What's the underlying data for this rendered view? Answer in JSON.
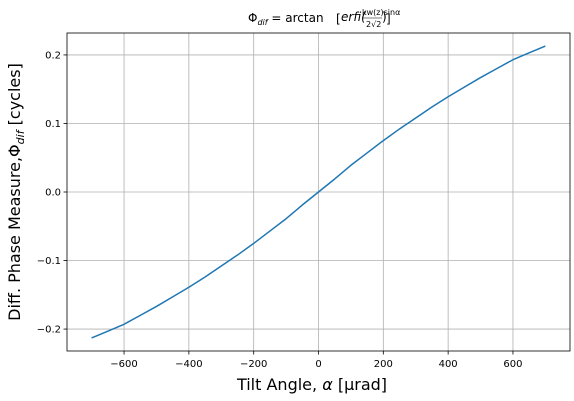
{
  "chart_data": {
    "type": "line",
    "title": {
      "lhs": "Φ",
      "lhs_sub": "dif",
      "eq": " = arctan",
      "fn": "erfi(",
      "num": "kw(z)sinα",
      "den": "2√2",
      "close": ")"
    },
    "xlabel": {
      "text": "Tilt Angle, ",
      "symbol": "α",
      "unit": " [μrad]"
    },
    "ylabel": {
      "text": "Diff. Phase Measure,",
      "symbol": "Φ",
      "sub": "dif",
      "unit": " [cycles]"
    },
    "xlim": [
      -776,
      776
    ],
    "ylim": [
      -0.232,
      0.232
    ],
    "xticks": [
      -600,
      -400,
      -200,
      0,
      200,
      400,
      600
    ],
    "xtick_labels": [
      "−600",
      "−400",
      "−200",
      "0",
      "200",
      "400",
      "600"
    ],
    "yticks": [
      -0.2,
      -0.1,
      0.0,
      0.1,
      0.2
    ],
    "ytick_labels": [
      "−0.2",
      "−0.1",
      "0.0",
      "0.1",
      "0.2"
    ],
    "grid": true,
    "series": [
      {
        "color": "#1f77b4",
        "x": [
          -700,
          -650,
          -600,
          -550,
          -500,
          -450,
          -400,
          -350,
          -300,
          -250,
          -200,
          -150,
          -100,
          -50,
          0,
          50,
          100,
          150,
          200,
          250,
          300,
          350,
          400,
          450,
          500,
          550,
          600,
          650,
          700
        ],
        "y": [
          -0.213,
          -0.203,
          -0.193,
          -0.18,
          -0.167,
          -0.153,
          -0.139,
          -0.124,
          -0.108,
          -0.092,
          -0.075,
          -0.057,
          -0.039,
          -0.019,
          0.0,
          0.019,
          0.039,
          0.057,
          0.075,
          0.092,
          0.108,
          0.124,
          0.139,
          0.153,
          0.167,
          0.18,
          0.193,
          0.203,
          0.213
        ]
      }
    ]
  }
}
